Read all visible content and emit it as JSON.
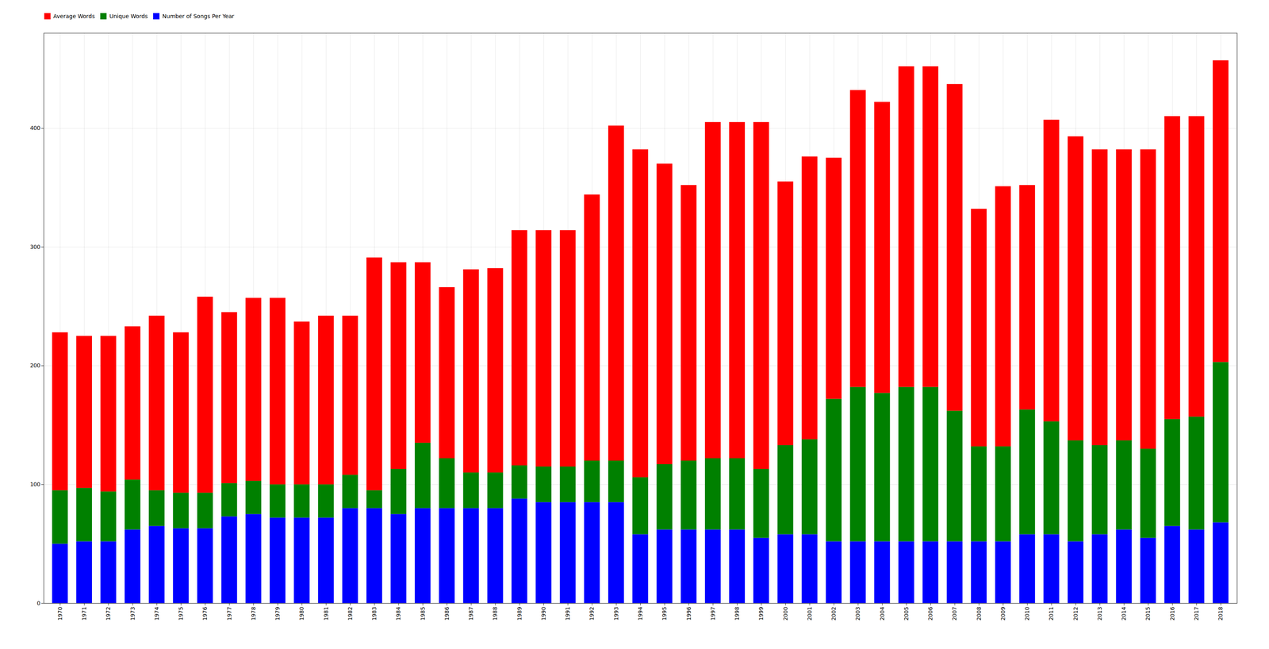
{
  "chart_data": {
    "type": "bar",
    "stacked": true,
    "categories": [
      "1970",
      "1971",
      "1972",
      "1973",
      "1974",
      "1975",
      "1976",
      "1977",
      "1978",
      "1979",
      "1980",
      "1981",
      "1982",
      "1983",
      "1984",
      "1985",
      "1986",
      "1987",
      "1988",
      "1989",
      "1990",
      "1991",
      "1992",
      "1993",
      "1994",
      "1995",
      "1996",
      "1997",
      "1998",
      "1999",
      "2000",
      "2001",
      "2002",
      "2003",
      "2004",
      "2005",
      "2006",
      "2007",
      "2008",
      "2009",
      "2010",
      "2011",
      "2012",
      "2013",
      "2014",
      "2015",
      "2016",
      "2017",
      "2018"
    ],
    "series": [
      {
        "name": "Number of Songs Per Year",
        "color": "#0000ff",
        "values": [
          50,
          52,
          52,
          62,
          65,
          63,
          63,
          73,
          75,
          72,
          72,
          72,
          80,
          80,
          75,
          80,
          80,
          80,
          80,
          88,
          85,
          85,
          85,
          85,
          58,
          62,
          62,
          62,
          62,
          55,
          58,
          58,
          52,
          52,
          52,
          52,
          52,
          52,
          52,
          52,
          58,
          58,
          52,
          58,
          62,
          55,
          65,
          62,
          68
        ]
      },
      {
        "name": "Unique Words",
        "color": "#008000",
        "values": [
          45,
          45,
          42,
          42,
          30,
          30,
          30,
          28,
          28,
          28,
          28,
          28,
          28,
          15,
          38,
          55,
          42,
          30,
          30,
          28,
          30,
          30,
          35,
          35,
          48,
          55,
          58,
          60,
          60,
          58,
          75,
          80,
          120,
          130,
          125,
          130,
          130,
          110,
          80,
          80,
          105,
          95,
          85,
          75,
          75,
          75,
          90,
          95,
          135
        ]
      },
      {
        "name": "Average Words",
        "color": "#ff0000",
        "values": [
          133,
          128,
          131,
          129,
          147,
          135,
          165,
          144,
          154,
          157,
          137,
          142,
          134,
          196,
          174,
          152,
          144,
          171,
          172,
          198,
          199,
          199,
          224,
          282,
          276,
          253,
          232,
          283,
          283,
          292,
          222,
          238,
          203,
          250,
          245,
          270,
          270,
          275,
          200,
          219,
          189,
          254,
          256,
          249,
          245,
          252,
          255,
          253,
          254
        ]
      }
    ],
    "ylim": [
      0,
      480
    ],
    "yticks": [
      0,
      100,
      200,
      300,
      400
    ],
    "grid": true,
    "legend": "upper left"
  }
}
